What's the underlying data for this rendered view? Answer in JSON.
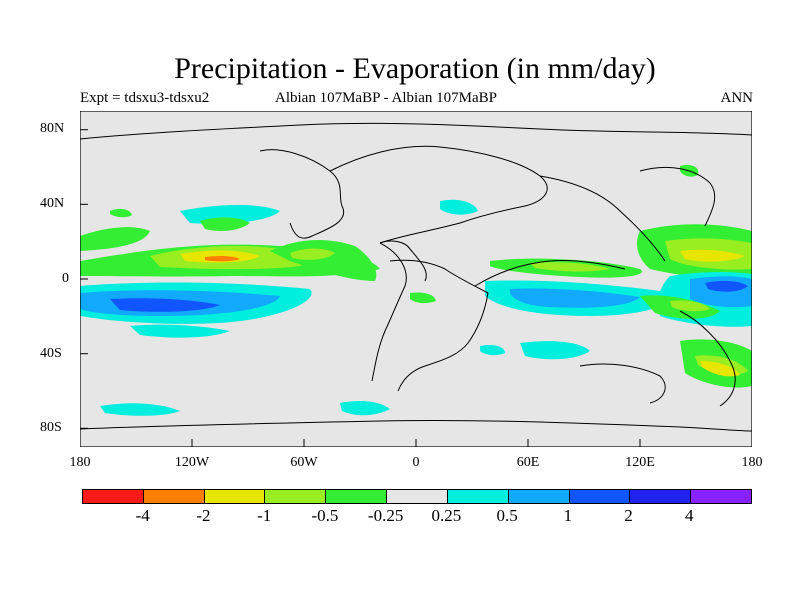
{
  "title": "Precipitation - Evaporation (in mm/day)",
  "subtitle_left": "Expt = tdsxu3-tdsxu2",
  "subtitle_center": "Albian   107MaBP - Albian   107MaBP",
  "subtitle_right": "ANN",
  "y_ticks": [
    "80N",
    "40N",
    "0",
    "40S",
    "80S"
  ],
  "x_ticks": [
    "180",
    "120W",
    "60W",
    "0",
    "60E",
    "120E",
    "180"
  ],
  "colorbar": {
    "colors": [
      "#ff1a1a",
      "#ff8000",
      "#e6e600",
      "#99ee22",
      "#33ee33",
      "#e6e6e6",
      "#00eedd",
      "#11aaff",
      "#1155ff",
      "#2222ee",
      "#8822ff"
    ],
    "labels": [
      "-4",
      "-2",
      "-1",
      "-0.5",
      "-0.25",
      "0.25",
      "0.5",
      "1",
      "2",
      "4"
    ]
  },
  "chart_data": {
    "type": "heatmap",
    "title": "Precipitation - Evaporation (in mm/day)",
    "xlim": [
      -180,
      180
    ],
    "ylim": [
      -90,
      90
    ],
    "x_ticks": [
      "180",
      "120W",
      "60W",
      "0",
      "60E",
      "120E",
      "180"
    ],
    "y_ticks": [
      "80N",
      "40N",
      "0",
      "40S",
      "80S"
    ],
    "levels": [
      -4,
      -2,
      -1,
      -0.5,
      -0.25,
      0.25,
      0.5,
      1,
      2,
      4
    ],
    "background_class": "-0.25 to 0.25"
  }
}
